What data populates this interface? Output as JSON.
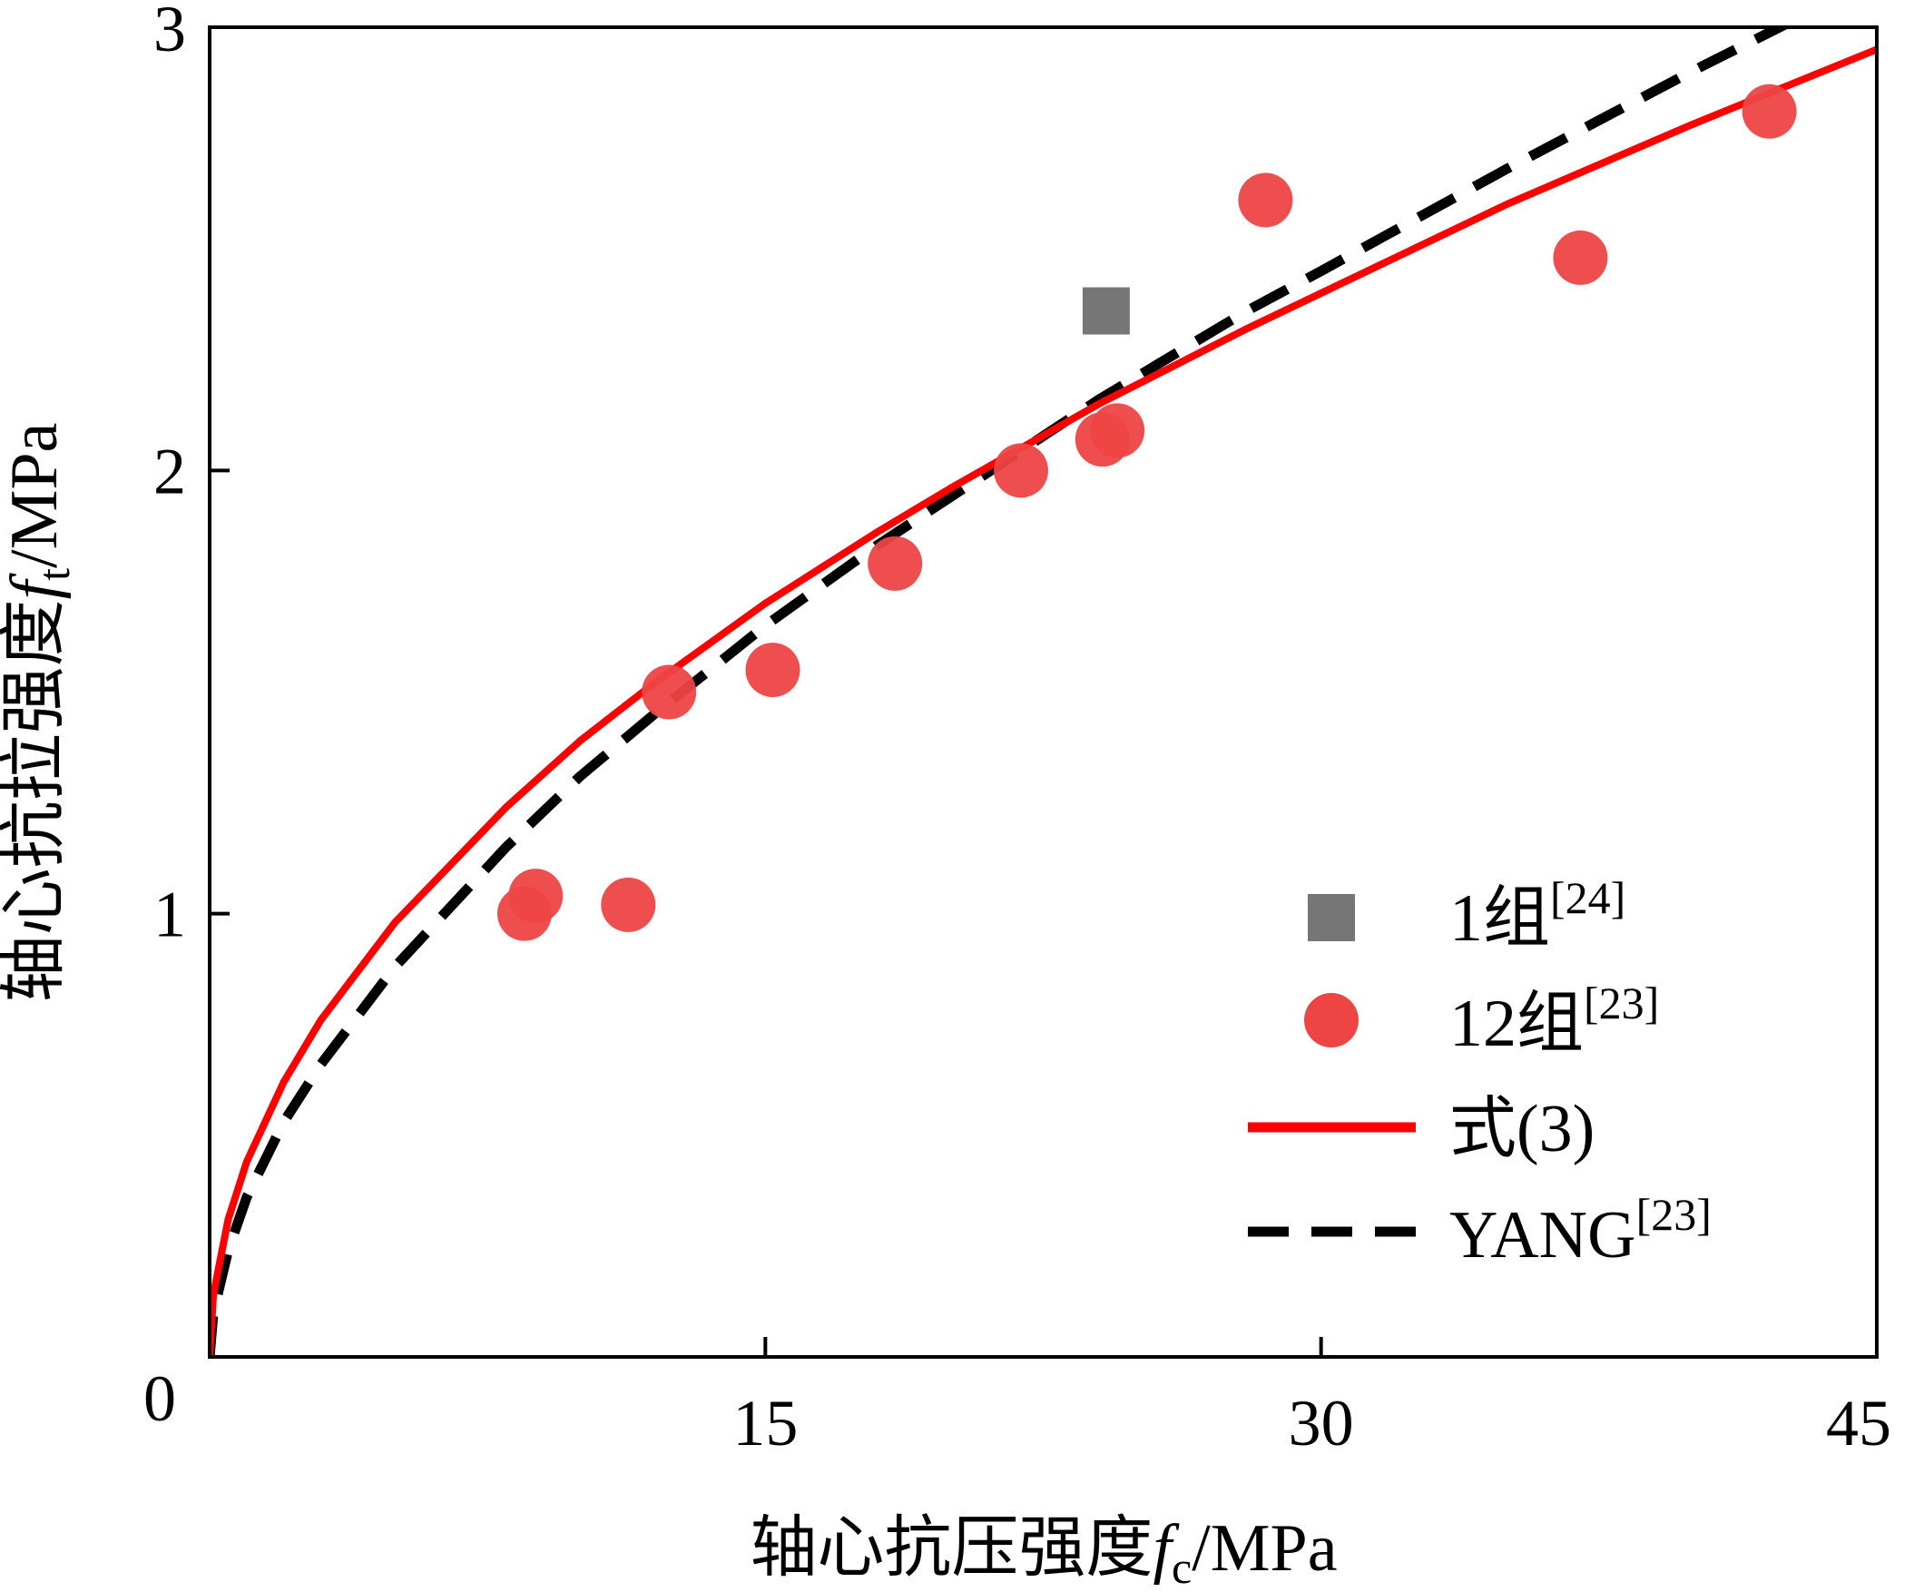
{
  "chart_data": {
    "type": "scatter",
    "xlabel": {
      "prefix": "轴心抗压强度",
      "var": "f",
      "sub": "c",
      "suffix": "/MPa"
    },
    "ylabel": {
      "prefix": "轴心抗拉强度",
      "var": "f",
      "sub": "t",
      "suffix": "/MPa"
    },
    "xlim": [
      0,
      45
    ],
    "ylim": [
      0,
      3
    ],
    "x_ticks": [
      "0",
      "15",
      "30",
      "45"
    ],
    "y_ticks": [
      "1",
      "2",
      "3"
    ],
    "grid": false,
    "legend_position": "bottom-right",
    "series": [
      {
        "name": "1组",
        "ref": "[24]",
        "kind": "scatter",
        "marker": "square",
        "color": "#767676",
        "points": [
          [
            24.2,
            2.36
          ]
        ]
      },
      {
        "name": "12组",
        "ref": "[23]",
        "kind": "scatter",
        "marker": "circle",
        "color": "#EE4444",
        "points": [
          [
            8.5,
            1.0
          ],
          [
            8.8,
            1.04
          ],
          [
            11.3,
            1.02
          ],
          [
            12.4,
            1.5
          ],
          [
            15.2,
            1.55
          ],
          [
            18.5,
            1.79
          ],
          [
            21.9,
            2.0
          ],
          [
            24.1,
            2.07
          ],
          [
            24.5,
            2.09
          ],
          [
            28.5,
            2.61
          ],
          [
            37.0,
            2.48
          ],
          [
            42.1,
            2.81
          ]
        ]
      },
      {
        "name": "式(3)",
        "ref": "",
        "kind": "line",
        "style": "solid",
        "color": "#FF0000",
        "points": [
          [
            0,
            0
          ],
          [
            0.1,
            0.14
          ],
          [
            0.5,
            0.31
          ],
          [
            1,
            0.44
          ],
          [
            2,
            0.62
          ],
          [
            3,
            0.76
          ],
          [
            5,
            0.98
          ],
          [
            8,
            1.24
          ],
          [
            10,
            1.39
          ],
          [
            12,
            1.52
          ],
          [
            15,
            1.7
          ],
          [
            18,
            1.86
          ],
          [
            20,
            1.96
          ],
          [
            24,
            2.15
          ],
          [
            28,
            2.32
          ],
          [
            30,
            2.4
          ],
          [
            35,
            2.6
          ],
          [
            40,
            2.78
          ],
          [
            45,
            2.95
          ]
        ]
      },
      {
        "name": "YANG",
        "ref": "[23]",
        "kind": "line",
        "style": "dashed",
        "color": "#000000",
        "points": [
          [
            0,
            0
          ],
          [
            0.1,
            0.1
          ],
          [
            0.5,
            0.24
          ],
          [
            1,
            0.36
          ],
          [
            2,
            0.53
          ],
          [
            3,
            0.66
          ],
          [
            5,
            0.88
          ],
          [
            8,
            1.15
          ],
          [
            10,
            1.31
          ],
          [
            12,
            1.45
          ],
          [
            15,
            1.65
          ],
          [
            18,
            1.83
          ],
          [
            20,
            1.94
          ],
          [
            24,
            2.16
          ],
          [
            28,
            2.36
          ],
          [
            30,
            2.45
          ],
          [
            35,
            2.68
          ],
          [
            40,
            2.9
          ],
          [
            45,
            3.11
          ]
        ]
      }
    ]
  }
}
